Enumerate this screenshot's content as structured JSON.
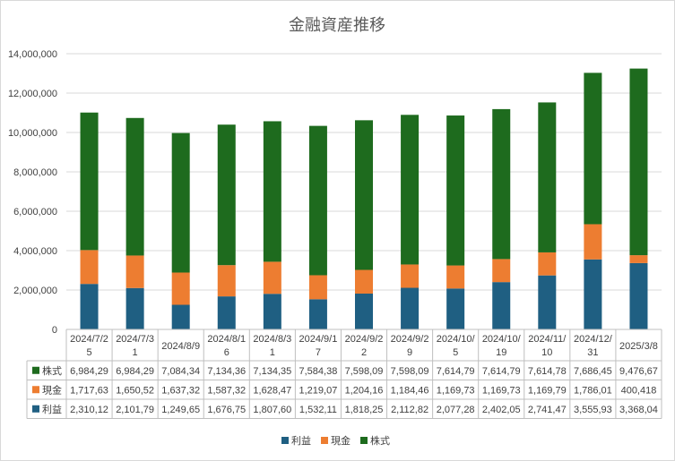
{
  "chart_data": {
    "type": "bar",
    "stacked": true,
    "title": "金融資産推移",
    "categories": [
      [
        "2024/7/2",
        "5"
      ],
      [
        "2024/7/3",
        "1"
      ],
      [
        "2024/8/9"
      ],
      [
        "2024/8/1",
        "6"
      ],
      [
        "2024/8/3",
        "1"
      ],
      [
        "2024/9/1",
        "7"
      ],
      [
        "2024/9/2",
        "2"
      ],
      [
        "2024/9/2",
        "9"
      ],
      [
        "2024/10/",
        "5"
      ],
      [
        "2024/10/",
        "19"
      ],
      [
        "2024/11/",
        "10"
      ],
      [
        "2024/12/",
        "31"
      ],
      [
        "2025/3/8"
      ]
    ],
    "ylim": [
      0,
      14000000
    ],
    "yticks": [
      "0",
      "2,000,000",
      "4,000,000",
      "6,000,000",
      "8,000,000",
      "10,000,000",
      "12,000,000",
      "14,000,000"
    ],
    "grid": true,
    "legend_position": "bottom",
    "series": [
      {
        "name": "利益",
        "color": "#1f5f82",
        "values": [
          2310120,
          2101790,
          1249650,
          1676750,
          1807600,
          1532110,
          1818250,
          2112820,
          2077280,
          2402050,
          2741470,
          3555930,
          3368040
        ],
        "table_text": [
          "2,310,12",
          "2,101,79",
          "1,249,65",
          "1,676,75",
          "1,807,60",
          "1,532,11",
          "1,818,25",
          "2,112,82",
          "2,077,28",
          "2,402,05",
          "2,741,47",
          "3,555,93",
          "3,368,04"
        ]
      },
      {
        "name": "現金",
        "color": "#ed7d31",
        "values": [
          1717630,
          1650520,
          1637320,
          1587320,
          1628470,
          1219070,
          1204160,
          1184460,
          1169730,
          1169730,
          1169790,
          1786010,
          400418
        ],
        "table_text": [
          "1,717,63",
          "1,650,52",
          "1,637,32",
          "1,587,32",
          "1,628,47",
          "1,219,07",
          "1,204,16",
          "1,184,46",
          "1,169,73",
          "1,169,73",
          "1,169,79",
          "1,786,01",
          "400,418"
        ]
      },
      {
        "name": "株式",
        "color": "#1e6b1e",
        "values": [
          6984290,
          6984290,
          7084340,
          7134360,
          7134350,
          7584380,
          7598090,
          7598090,
          7614790,
          7614790,
          7614780,
          7686450,
          9476670
        ],
        "table_text": [
          "6,984,29",
          "6,984,29",
          "7,084,34",
          "7,134,36",
          "7,134,35",
          "7,584,38",
          "7,598,09",
          "7,598,09",
          "7,614,79",
          "7,614,79",
          "7,614,78",
          "7,686,45",
          "9,476,67"
        ]
      }
    ],
    "table_row_order": [
      "株式",
      "現金",
      "利益"
    ]
  }
}
